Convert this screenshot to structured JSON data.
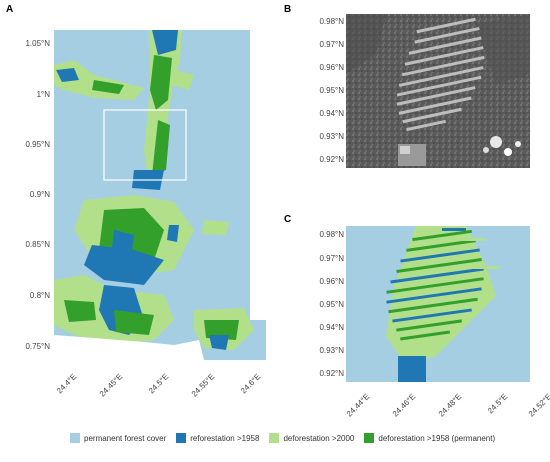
{
  "panels": {
    "a": {
      "letter": "A",
      "y_ticks": [
        "1.05°N",
        "1°N",
        "0.95°N",
        "0.9°N",
        "0.85°N",
        "0.8°N",
        "0.75°N"
      ],
      "x_ticks": [
        "24.4°E",
        "24.45°E",
        "24.5°E",
        "24.55°E",
        "24.6°E"
      ]
    },
    "b": {
      "letter": "B",
      "y_ticks": [
        "0.98°N",
        "0.97°N",
        "0.96°N",
        "0.95°N",
        "0.94°N",
        "0.93°N",
        "0.92°N"
      ]
    },
    "c": {
      "letter": "C",
      "y_ticks": [
        "0.98°N",
        "0.97°N",
        "0.96°N",
        "0.95°N",
        "0.94°N",
        "0.93°N",
        "0.92°N"
      ],
      "x_ticks": [
        "24.44°E",
        "24.46°E",
        "24.48°E",
        "24.5°E",
        "24.52°E"
      ]
    }
  },
  "legend": [
    {
      "label": "permanent forest cover",
      "color": "#a6cee3"
    },
    {
      "label": "reforestation >1958",
      "color": "#1f78b4"
    },
    {
      "label": "deforestation >2000",
      "color": "#b2df8a"
    },
    {
      "label": "deforestation >1958 (permanent)",
      "color": "#33a02c"
    }
  ],
  "colors": {
    "forest": "#a6cee3",
    "reforest": "#1f78b4",
    "deforest2000": "#b2df8a",
    "deforest1958": "#33a02c",
    "water": "#ffffff"
  }
}
